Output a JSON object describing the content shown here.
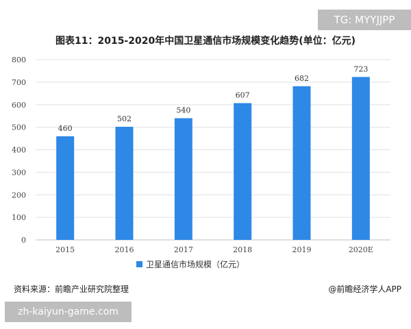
{
  "chart_data": {
    "type": "bar",
    "title": "图表11：2015-2020年中国卫星通信市场规模变化趋势(单位：亿元)",
    "categories": [
      "2015",
      "2016",
      "2017",
      "2018",
      "2019",
      "2020E"
    ],
    "series": [
      {
        "name": "卫星通信市场规模（亿元）",
        "values": [
          460,
          502,
          540,
          607,
          682,
          723
        ]
      }
    ],
    "data_labels": [
      "460",
      "502",
      "540",
      "607",
      "682",
      "723"
    ],
    "y_ticks": [
      "0",
      "100",
      "200",
      "300",
      "400",
      "500",
      "600",
      "700",
      "800"
    ],
    "ylim": [
      0,
      800
    ],
    "grid": true,
    "legend_position": "bottom",
    "bar_color": "#2e88e6"
  },
  "source_text": "资料来源：前瞻产业研究院整理",
  "credit_text": "@前瞻经济学人APP",
  "top_badge": "TG: MYYJJPP",
  "bottom_badge": "zh-kaiyun-game.com",
  "colors": {
    "bar": "#2e88e6",
    "grid": "#e0e0e0",
    "badge": "#bdbdbd"
  }
}
